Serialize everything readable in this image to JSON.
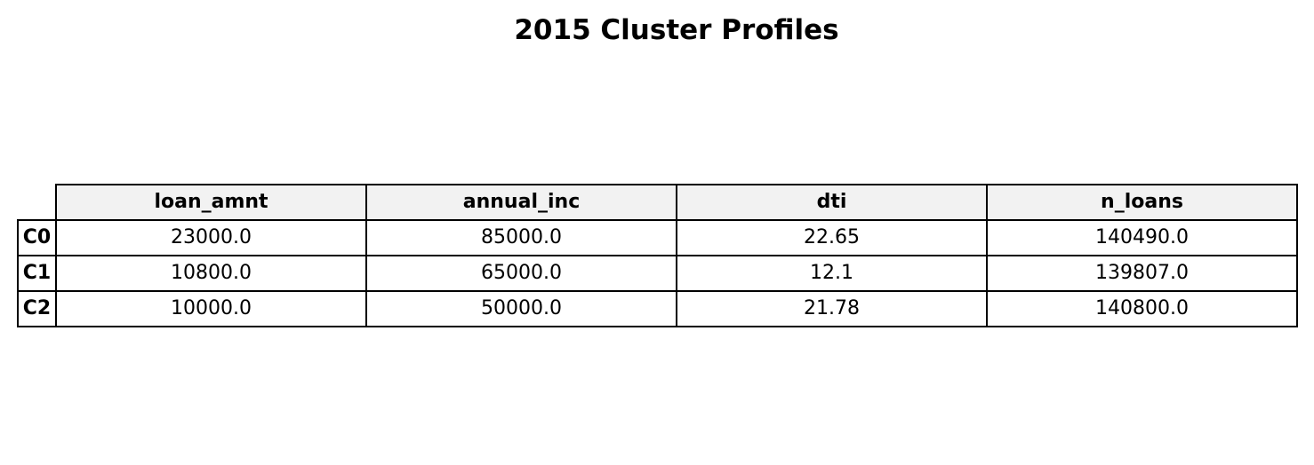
{
  "chart_data": {
    "type": "table",
    "title": "2015 Cluster Profiles",
    "columns": [
      "loan_amnt",
      "annual_inc",
      "dti",
      "n_loans"
    ],
    "rows": [
      {
        "label": "C0",
        "values": [
          "23000.0",
          "85000.0",
          "22.65",
          "140490.0"
        ]
      },
      {
        "label": "C1",
        "values": [
          "10800.0",
          "65000.0",
          "12.1",
          "139807.0"
        ]
      },
      {
        "label": "C2",
        "values": [
          "10000.0",
          "50000.0",
          "21.78",
          "140800.0"
        ]
      }
    ],
    "header_fill": "#f2f2f2",
    "border_color": "#000000"
  }
}
